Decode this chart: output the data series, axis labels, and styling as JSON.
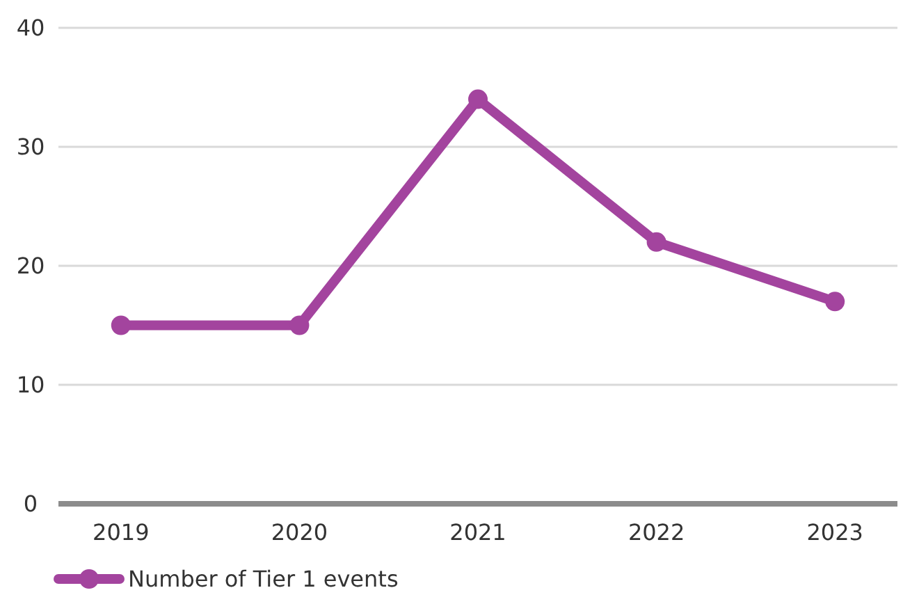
{
  "chart_data": {
    "type": "line",
    "categories": [
      "2019",
      "2020",
      "2021",
      "2022",
      "2023"
    ],
    "series": [
      {
        "name": "Number of Tier 1 events",
        "color": "#a3449e",
        "values": [
          15,
          15,
          34,
          22,
          17
        ]
      }
    ],
    "ylim": [
      0,
      40
    ],
    "yticks": [
      0,
      10,
      20,
      30,
      40
    ],
    "grid": "y",
    "legend": "bottom",
    "marker": "circle",
    "line_style": "solid"
  }
}
